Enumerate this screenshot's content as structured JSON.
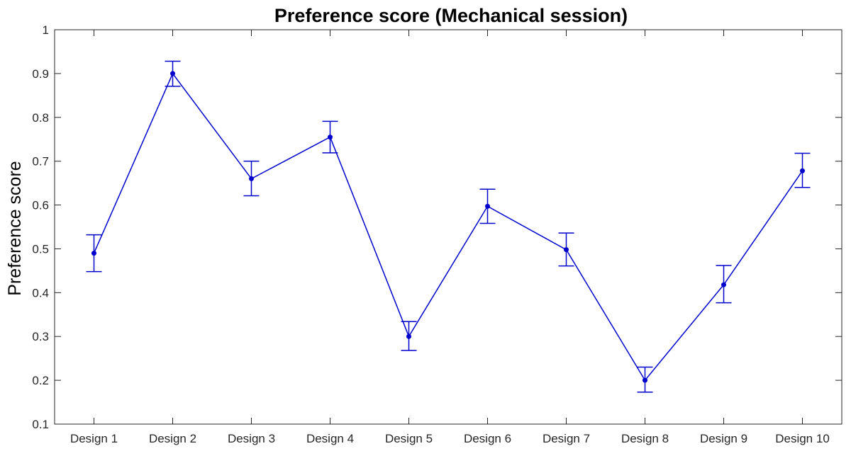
{
  "chart_data": {
    "type": "line",
    "title": "Preference score (Mechanical session)",
    "xlabel": "",
    "ylabel": "Preference score",
    "categories": [
      "Design 1",
      "Design 2",
      "Design 3",
      "Design 4",
      "Design 5",
      "Design 6",
      "Design 7",
      "Design 8",
      "Design 9",
      "Design 10"
    ],
    "series": [
      {
        "values": [
          0.49,
          0.9,
          0.66,
          0.755,
          0.3,
          0.597,
          0.498,
          0.2,
          0.418,
          0.678
        ],
        "error_lower": [
          0.448,
          0.871,
          0.621,
          0.719,
          0.268,
          0.558,
          0.461,
          0.173,
          0.377,
          0.64
        ],
        "error_upper": [
          0.532,
          0.928,
          0.7,
          0.791,
          0.334,
          0.636,
          0.536,
          0.23,
          0.462,
          0.718
        ],
        "color": "#0000cc"
      }
    ],
    "ylim": [
      0.1,
      1
    ],
    "yticks": [
      "0.1",
      "0.2",
      "0.3",
      "0.4",
      "0.5",
      "0.6",
      "0.7",
      "0.8",
      "0.9",
      "1"
    ],
    "grid": false,
    "box": true
  }
}
